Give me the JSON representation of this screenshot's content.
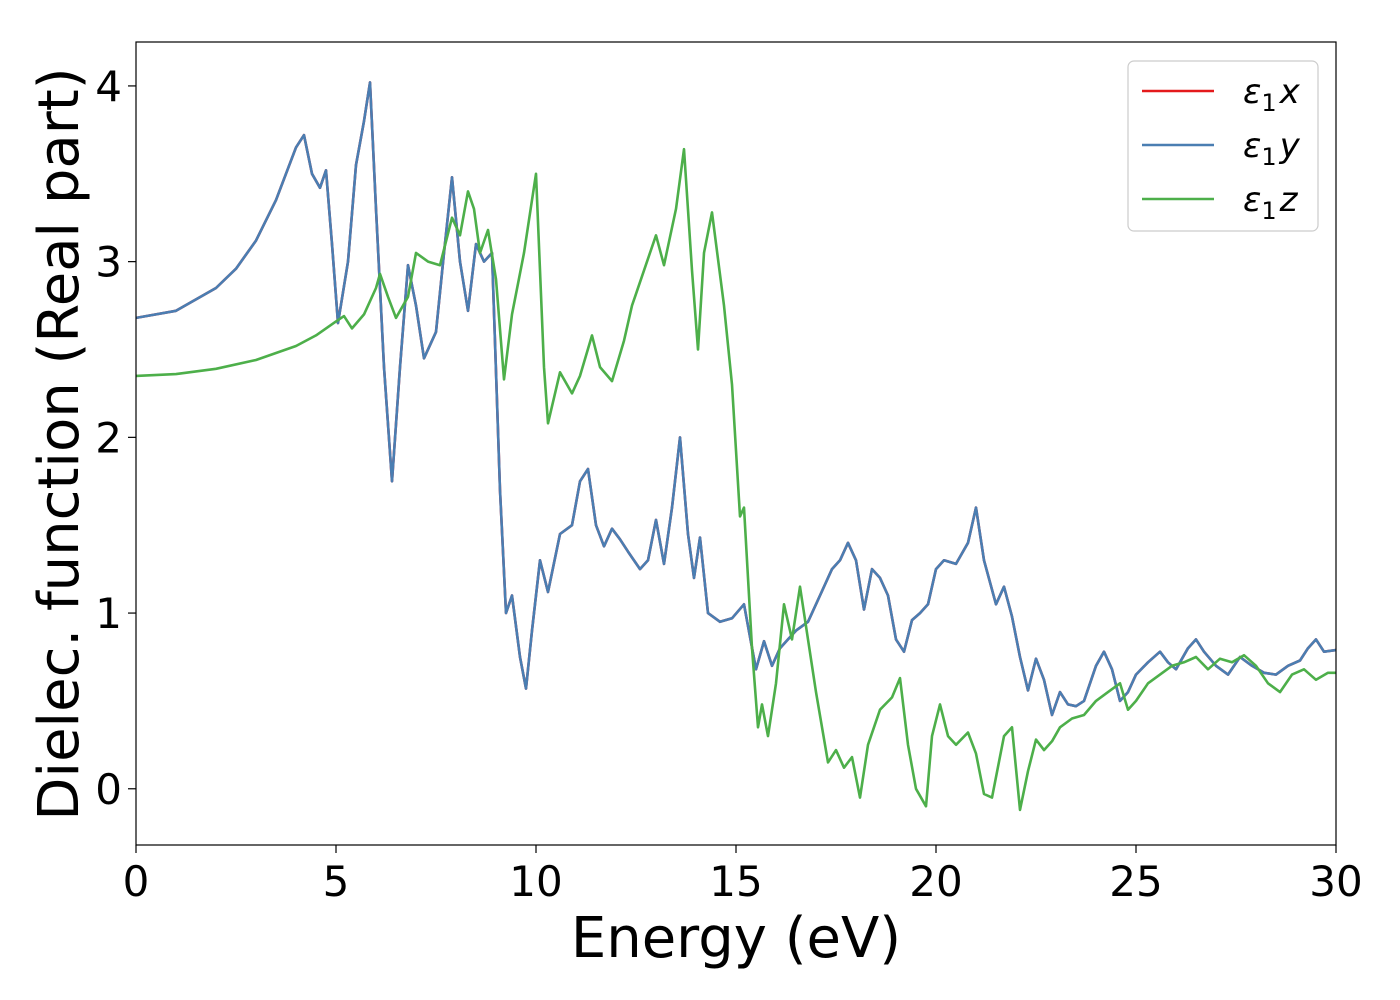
{
  "chart_data": {
    "type": "line",
    "title": "",
    "xlabel": "Energy (eV)",
    "ylabel": "Dielec. function (Real part)",
    "xlim": [
      0,
      30
    ],
    "ylim": [
      -0.32,
      4.25
    ],
    "xticks": [
      0,
      5,
      10,
      15,
      20,
      25,
      30
    ],
    "yticks": [
      0,
      1,
      2,
      3,
      4
    ],
    "grid": false,
    "legend_position": "top-right",
    "legend_base": "ε",
    "legend_sub": "1",
    "series": [
      {
        "name": "ε1x",
        "legend_suffix": "x",
        "color": "#e41a1c",
        "x": [
          0,
          1,
          2,
          2.5,
          3,
          3.5,
          4,
          4.2,
          4.4,
          4.6,
          4.75,
          4.9,
          5.05,
          5.3,
          5.5,
          5.7,
          5.85,
          6.0,
          6.2,
          6.4,
          6.6,
          6.8,
          7.0,
          7.2,
          7.5,
          7.7,
          7.9,
          8.1,
          8.3,
          8.5,
          8.7,
          8.9,
          9.1,
          9.25,
          9.4,
          9.6,
          9.75,
          9.9,
          10.1,
          10.3,
          10.6,
          10.9,
          11.1,
          11.3,
          11.5,
          11.7,
          11.9,
          12.1,
          12.3,
          12.6,
          12.8,
          13.0,
          13.2,
          13.4,
          13.6,
          13.8,
          13.95,
          14.1,
          14.3,
          14.6,
          14.9,
          15.2,
          15.5,
          15.7,
          15.9,
          16.1,
          16.3,
          16.5,
          16.8,
          17.1,
          17.4,
          17.6,
          17.8,
          18.0,
          18.2,
          18.4,
          18.6,
          18.8,
          19.0,
          19.2,
          19.4,
          19.6,
          19.8,
          20.0,
          20.2,
          20.5,
          20.8,
          21.0,
          21.2,
          21.5,
          21.7,
          21.9,
          22.1,
          22.3,
          22.5,
          22.7,
          22.9,
          23.1,
          23.3,
          23.5,
          23.7,
          24.0,
          24.2,
          24.4,
          24.6,
          24.8,
          25.0,
          25.3,
          25.6,
          25.8,
          26.0,
          26.3,
          26.5,
          26.7,
          27.0,
          27.3,
          27.6,
          27.9,
          28.2,
          28.5,
          28.8,
          29.1,
          29.3,
          29.5,
          29.7,
          30.0
        ],
        "y": [
          2.68,
          2.72,
          2.85,
          2.96,
          3.12,
          3.35,
          3.65,
          3.72,
          3.5,
          3.42,
          3.52,
          3.1,
          2.65,
          3.0,
          3.55,
          3.8,
          4.02,
          3.3,
          2.4,
          1.75,
          2.4,
          2.98,
          2.75,
          2.45,
          2.6,
          3.05,
          3.48,
          3.0,
          2.72,
          3.1,
          3.0,
          3.05,
          1.7,
          1.0,
          1.1,
          0.75,
          0.57,
          0.9,
          1.3,
          1.12,
          1.45,
          1.5,
          1.75,
          1.82,
          1.5,
          1.38,
          1.48,
          1.42,
          1.35,
          1.25,
          1.3,
          1.53,
          1.28,
          1.6,
          2.0,
          1.45,
          1.2,
          1.43,
          1.0,
          0.95,
          0.97,
          1.05,
          0.68,
          0.84,
          0.7,
          0.8,
          0.85,
          0.9,
          0.95,
          1.1,
          1.25,
          1.3,
          1.4,
          1.3,
          1.02,
          1.25,
          1.2,
          1.1,
          0.85,
          0.78,
          0.96,
          1.0,
          1.05,
          1.25,
          1.3,
          1.28,
          1.4,
          1.6,
          1.3,
          1.05,
          1.15,
          0.98,
          0.75,
          0.56,
          0.74,
          0.62,
          0.42,
          0.55,
          0.48,
          0.47,
          0.5,
          0.7,
          0.78,
          0.68,
          0.5,
          0.55,
          0.65,
          0.72,
          0.78,
          0.72,
          0.68,
          0.8,
          0.85,
          0.78,
          0.7,
          0.65,
          0.75,
          0.7,
          0.66,
          0.65,
          0.7,
          0.73,
          0.8,
          0.85,
          0.78,
          0.79
        ]
      },
      {
        "name": "ε1y",
        "legend_suffix": "y",
        "color": "#4a7eb2",
        "x": [
          0,
          1,
          2,
          2.5,
          3,
          3.5,
          4,
          4.2,
          4.4,
          4.6,
          4.75,
          4.9,
          5.05,
          5.3,
          5.5,
          5.7,
          5.85,
          6.0,
          6.2,
          6.4,
          6.6,
          6.8,
          7.0,
          7.2,
          7.5,
          7.7,
          7.9,
          8.1,
          8.3,
          8.5,
          8.7,
          8.9,
          9.1,
          9.25,
          9.4,
          9.6,
          9.75,
          9.9,
          10.1,
          10.3,
          10.6,
          10.9,
          11.1,
          11.3,
          11.5,
          11.7,
          11.9,
          12.1,
          12.3,
          12.6,
          12.8,
          13.0,
          13.2,
          13.4,
          13.6,
          13.8,
          13.95,
          14.1,
          14.3,
          14.6,
          14.9,
          15.2,
          15.5,
          15.7,
          15.9,
          16.1,
          16.3,
          16.5,
          16.8,
          17.1,
          17.4,
          17.6,
          17.8,
          18.0,
          18.2,
          18.4,
          18.6,
          18.8,
          19.0,
          19.2,
          19.4,
          19.6,
          19.8,
          20.0,
          20.2,
          20.5,
          20.8,
          21.0,
          21.2,
          21.5,
          21.7,
          21.9,
          22.1,
          22.3,
          22.5,
          22.7,
          22.9,
          23.1,
          23.3,
          23.5,
          23.7,
          24.0,
          24.2,
          24.4,
          24.6,
          24.8,
          25.0,
          25.3,
          25.6,
          25.8,
          26.0,
          26.3,
          26.5,
          26.7,
          27.0,
          27.3,
          27.6,
          27.9,
          28.2,
          28.5,
          28.8,
          29.1,
          29.3,
          29.5,
          29.7,
          30.0
        ],
        "y": [
          2.68,
          2.72,
          2.85,
          2.96,
          3.12,
          3.35,
          3.65,
          3.72,
          3.5,
          3.42,
          3.52,
          3.1,
          2.65,
          3.0,
          3.55,
          3.8,
          4.02,
          3.3,
          2.4,
          1.75,
          2.4,
          2.98,
          2.75,
          2.45,
          2.6,
          3.05,
          3.48,
          3.0,
          2.72,
          3.1,
          3.0,
          3.05,
          1.7,
          1.0,
          1.1,
          0.75,
          0.57,
          0.9,
          1.3,
          1.12,
          1.45,
          1.5,
          1.75,
          1.82,
          1.5,
          1.38,
          1.48,
          1.42,
          1.35,
          1.25,
          1.3,
          1.53,
          1.28,
          1.6,
          2.0,
          1.45,
          1.2,
          1.43,
          1.0,
          0.95,
          0.97,
          1.05,
          0.68,
          0.84,
          0.7,
          0.8,
          0.85,
          0.9,
          0.95,
          1.1,
          1.25,
          1.3,
          1.4,
          1.3,
          1.02,
          1.25,
          1.2,
          1.1,
          0.85,
          0.78,
          0.96,
          1.0,
          1.05,
          1.25,
          1.3,
          1.28,
          1.4,
          1.6,
          1.3,
          1.05,
          1.15,
          0.98,
          0.75,
          0.56,
          0.74,
          0.62,
          0.42,
          0.55,
          0.48,
          0.47,
          0.5,
          0.7,
          0.78,
          0.68,
          0.5,
          0.55,
          0.65,
          0.72,
          0.78,
          0.72,
          0.68,
          0.8,
          0.85,
          0.78,
          0.7,
          0.65,
          0.75,
          0.7,
          0.66,
          0.65,
          0.7,
          0.73,
          0.8,
          0.85,
          0.78,
          0.79
        ]
      },
      {
        "name": "ε1z",
        "legend_suffix": "z",
        "color": "#4daf4a",
        "x": [
          0,
          1,
          2,
          3,
          3.5,
          4,
          4.5,
          5.0,
          5.2,
          5.4,
          5.7,
          6.0,
          6.1,
          6.3,
          6.5,
          6.8,
          7.0,
          7.3,
          7.6,
          7.9,
          8.1,
          8.3,
          8.45,
          8.6,
          8.8,
          9.0,
          9.2,
          9.4,
          9.7,
          9.9,
          10.0,
          10.2,
          10.3,
          10.6,
          10.9,
          11.1,
          11.4,
          11.6,
          11.9,
          12.2,
          12.4,
          12.7,
          13.0,
          13.2,
          13.5,
          13.7,
          13.9,
          14.05,
          14.2,
          14.4,
          14.7,
          14.9,
          15.1,
          15.2,
          15.4,
          15.55,
          15.65,
          15.8,
          16.0,
          16.2,
          16.4,
          16.6,
          16.8,
          17.0,
          17.3,
          17.5,
          17.7,
          17.9,
          18.1,
          18.3,
          18.6,
          18.9,
          19.1,
          19.3,
          19.5,
          19.75,
          19.9,
          20.1,
          20.3,
          20.5,
          20.8,
          21.0,
          21.2,
          21.4,
          21.7,
          21.9,
          22.1,
          22.3,
          22.5,
          22.7,
          22.9,
          23.1,
          23.4,
          23.7,
          24.0,
          24.3,
          24.6,
          24.8,
          25.0,
          25.3,
          25.6,
          25.9,
          26.2,
          26.5,
          26.8,
          27.1,
          27.4,
          27.7,
          28.0,
          28.3,
          28.6,
          28.9,
          29.2,
          29.5,
          29.8,
          30.0
        ],
        "y": [
          2.35,
          2.36,
          2.39,
          2.44,
          2.48,
          2.52,
          2.58,
          2.66,
          2.69,
          2.62,
          2.7,
          2.85,
          2.93,
          2.8,
          2.68,
          2.8,
          3.05,
          3.0,
          2.98,
          3.25,
          3.15,
          3.4,
          3.3,
          3.05,
          3.18,
          2.9,
          2.33,
          2.7,
          3.05,
          3.35,
          3.5,
          2.4,
          2.08,
          2.37,
          2.25,
          2.35,
          2.58,
          2.4,
          2.32,
          2.55,
          2.75,
          2.95,
          3.15,
          2.98,
          3.3,
          3.64,
          2.95,
          2.5,
          3.05,
          3.28,
          2.75,
          2.3,
          1.55,
          1.6,
          0.8,
          0.35,
          0.48,
          0.3,
          0.6,
          1.05,
          0.85,
          1.15,
          0.85,
          0.55,
          0.15,
          0.22,
          0.12,
          0.18,
          -0.05,
          0.25,
          0.45,
          0.52,
          0.63,
          0.25,
          0.0,
          -0.1,
          0.3,
          0.48,
          0.3,
          0.25,
          0.32,
          0.2,
          -0.03,
          -0.05,
          0.3,
          0.35,
          -0.12,
          0.1,
          0.28,
          0.22,
          0.27,
          0.35,
          0.4,
          0.42,
          0.5,
          0.55,
          0.6,
          0.45,
          0.5,
          0.6,
          0.65,
          0.7,
          0.72,
          0.75,
          0.68,
          0.74,
          0.72,
          0.76,
          0.7,
          0.6,
          0.55,
          0.65,
          0.68,
          0.62,
          0.66,
          0.66
        ]
      }
    ]
  }
}
